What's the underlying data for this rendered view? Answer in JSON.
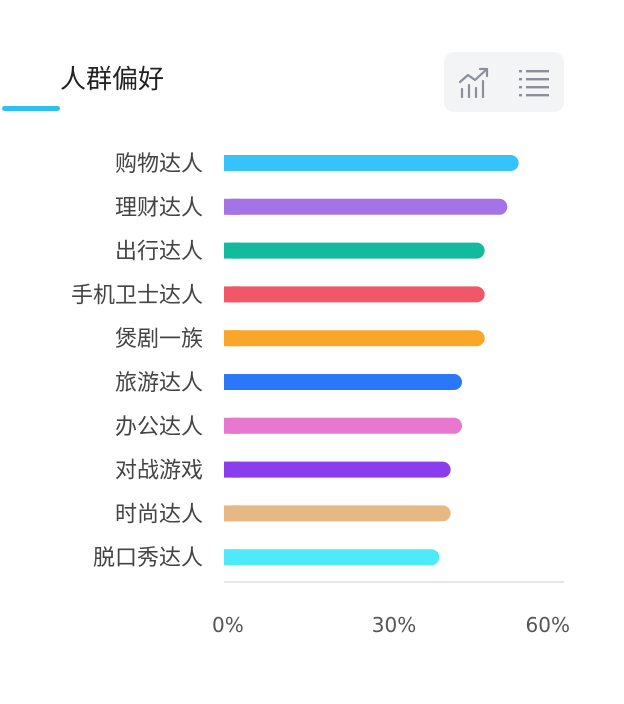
{
  "header": {
    "title": "人群偏好",
    "view_toggle": {
      "active": "chart",
      "chart_icon": "trend-chart-icon",
      "list_icon": "list-icon",
      "accent_color": "#2ec0f5"
    }
  },
  "chart_data": {
    "type": "bar",
    "orientation": "horizontal",
    "categories": [
      "购物达人",
      "理财达人",
      "出行达人",
      "手机卫士达人",
      "煲剧一族",
      "旅游达人",
      "办公达人",
      "对战游戏",
      "时尚达人",
      "脱口秀达人"
    ],
    "values": [
      52,
      50,
      46,
      46,
      46,
      42,
      42,
      40,
      40,
      38
    ],
    "colors": [
      "#35c3fa",
      "#a474e6",
      "#13bb9c",
      "#f0586a",
      "#faa628",
      "#2a78f7",
      "#e777cf",
      "#8a3ded",
      "#e6b884",
      "#4eeaf9"
    ],
    "xlim": [
      0,
      60
    ],
    "x_ticks": [
      "0%",
      "30%",
      "60%"
    ],
    "x_tick_values": [
      0,
      30,
      60
    ],
    "grid": false
  }
}
